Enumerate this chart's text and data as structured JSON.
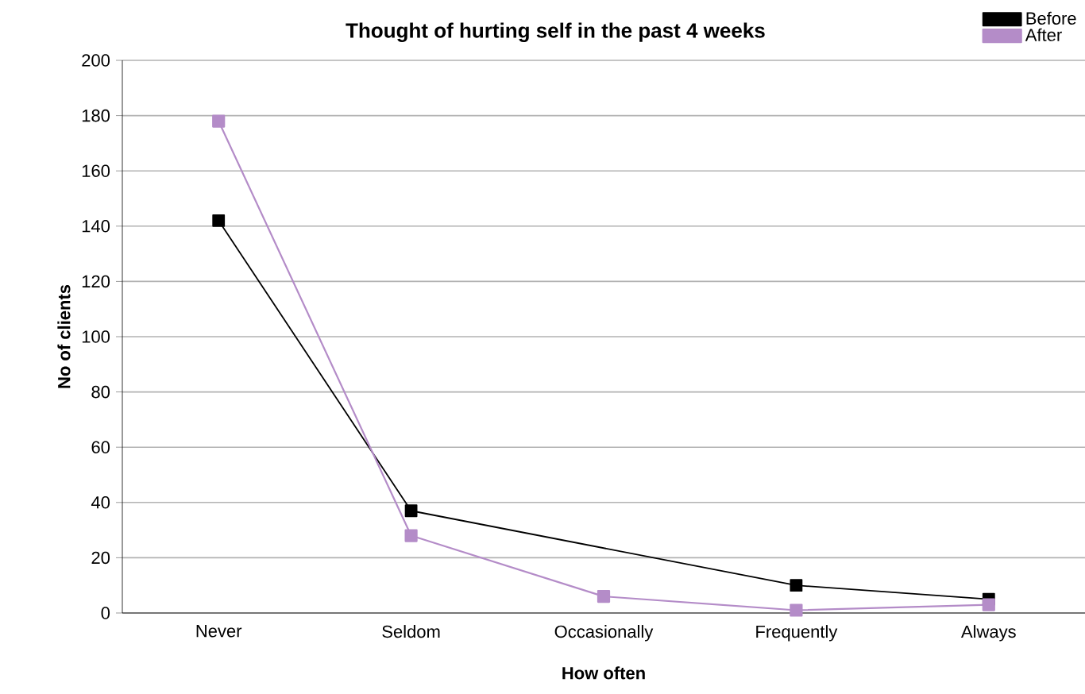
{
  "chart_data": {
    "type": "line",
    "title": "Thought of hurting self in the past 4 weeks",
    "xlabel": "How often",
    "ylabel": "No of clients",
    "categories": [
      "Never",
      "Seldom",
      "Occasionally",
      "Frequently",
      "Always"
    ],
    "series": [
      {
        "name": "Before",
        "color": "#000000",
        "values": [
          142,
          37,
          null,
          10,
          5
        ]
      },
      {
        "name": "After",
        "color": "#b48cc8",
        "values": [
          178,
          28,
          6,
          1,
          3
        ]
      }
    ],
    "ylim": [
      0,
      200
    ],
    "yticks": [
      0,
      20,
      40,
      60,
      80,
      100,
      120,
      140,
      160,
      180,
      200
    ],
    "grid": "y",
    "legend": "top right",
    "marker": "square",
    "line_style": "solid"
  }
}
